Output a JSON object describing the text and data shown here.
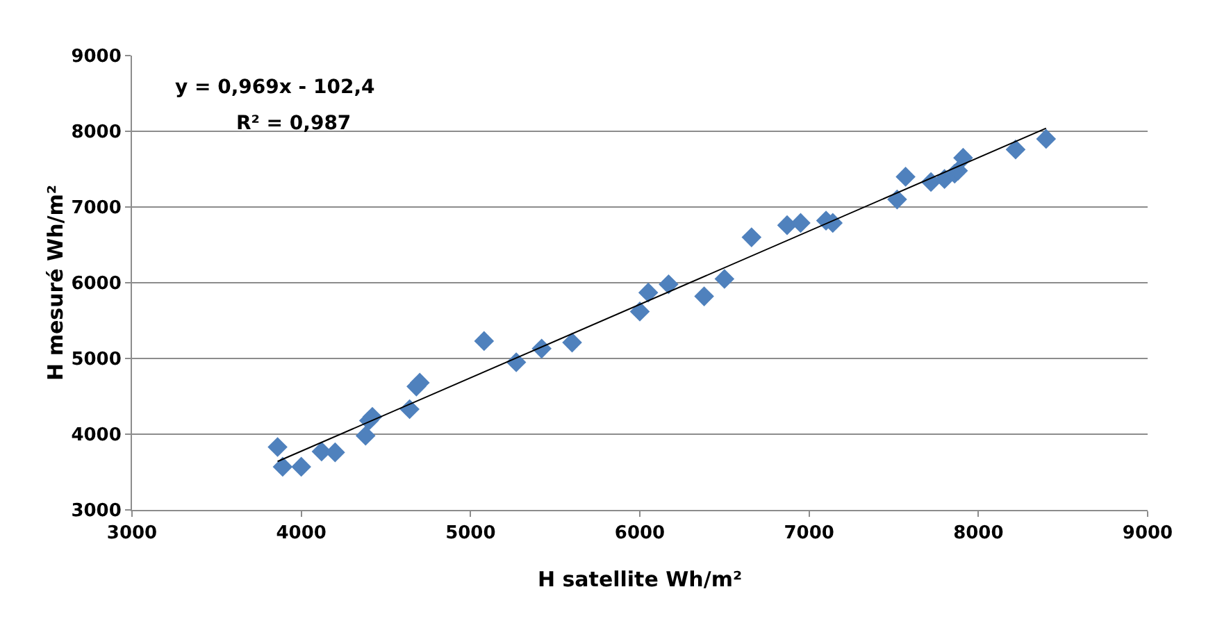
{
  "chart_data": {
    "type": "scatter",
    "xlabel": "H satellite Wh/m²",
    "ylabel": "H mesuré Wh/m²",
    "xlim": [
      3000,
      9000
    ],
    "xticks": [
      3000,
      4000,
      5000,
      6000,
      7000,
      8000,
      9000
    ],
    "ylim": [
      3000,
      9000
    ],
    "yticks": [
      3000,
      4000,
      5000,
      6000,
      7000,
      8000,
      9000
    ],
    "grid": "y",
    "marker": "diamond",
    "annotations": [
      "y = 0,969x - 102,4",
      "R² = 0,987"
    ],
    "series": [
      {
        "color": "#4f81bd",
        "x": [
          3860,
          3890,
          4000,
          4120,
          4200,
          4380,
          4420,
          4400,
          4640,
          4700,
          4680,
          5080,
          5270,
          5420,
          5600,
          6000,
          6050,
          6170,
          6380,
          6500,
          6660,
          6870,
          6950,
          7100,
          7140,
          7520,
          7570,
          7720,
          7800,
          7860,
          7880,
          7910,
          8220,
          8400
        ],
        "values": [
          3830,
          3570,
          3570,
          3770,
          3760,
          3980,
          4230,
          4180,
          4330,
          4680,
          4630,
          5230,
          4950,
          5130,
          5210,
          5620,
          5870,
          5980,
          5820,
          6050,
          6600,
          6760,
          6790,
          6820,
          6790,
          7100,
          7400,
          7330,
          7370,
          7440,
          7480,
          7650,
          7760,
          7900
        ]
      },
      {
        "type": "line",
        "marker": "none",
        "color": "#000000",
        "x": [
          3860,
          8400
        ],
        "values": [
          3640,
          8040
        ]
      }
    ]
  }
}
